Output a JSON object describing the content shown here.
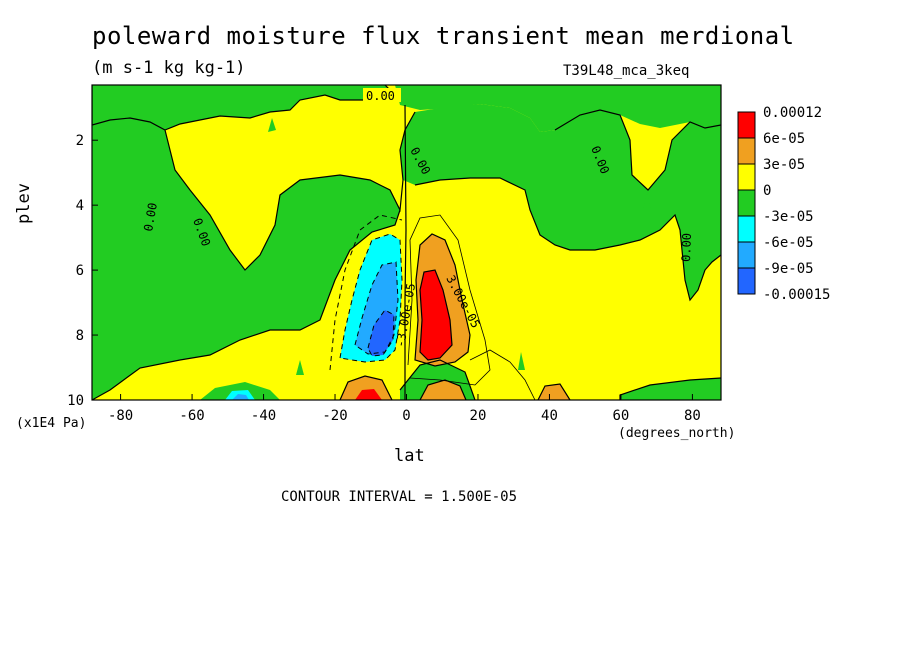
{
  "title": "poleward moisture flux transient mean merdional",
  "units": "(m s-1 kg kg-1)",
  "dataset": "T39L48_mca_3keq",
  "contour_interval": "CONTOUR INTERVAL = 1.500E-05",
  "colors": {
    "red": "#ff0000",
    "orange": "#f0a020",
    "yellow": "#ffff00",
    "green": "#22cc22",
    "cyan": "#00ffff",
    "sky": "#22aaff",
    "blue": "#2266ff"
  },
  "chart_data": {
    "type": "heatmap",
    "title": "poleward moisture flux transient mean merdional",
    "xlabel": "lat",
    "ylabel": "plev",
    "x_units": "(degrees_north)",
    "y_units": "(x1E4 Pa)",
    "xlim": [
      -88,
      88
    ],
    "ylim": [
      10,
      0.3
    ],
    "x_ticks": [
      "-80",
      "-60",
      "-40",
      "-20",
      "0",
      "20",
      "40",
      "60",
      "80"
    ],
    "y_ticks": [
      "2",
      "4",
      "6",
      "8",
      "10"
    ],
    "colorbar": {
      "labels": [
        "0.00012",
        "6e-05",
        "3e-05",
        "0",
        "-3e-05",
        "-6e-05",
        "-9e-05",
        "-0.00015"
      ],
      "bins": [
        {
          "range": [
            9e-05,
            0.00012
          ],
          "color": "red"
        },
        {
          "range": [
            6e-05,
            9e-05
          ],
          "color": "orange"
        },
        {
          "range": [
            3e-05,
            6e-05
          ],
          "color": "orange"
        },
        {
          "range": [
            0,
            3e-05
          ],
          "color": "yellow"
        },
        {
          "range": [
            -3e-05,
            0
          ],
          "color": "green"
        },
        {
          "range": [
            -6e-05,
            -3e-05
          ],
          "color": "cyan"
        },
        {
          "range": [
            -9e-05,
            -6e-05
          ],
          "color": "sky"
        },
        {
          "range": [
            -0.00015,
            -9e-05
          ],
          "color": "blue"
        }
      ]
    },
    "contour_labels": [
      "0.00",
      "0.00",
      "0.00",
      "0.00",
      "0.00",
      "0.00",
      "3.00e-05",
      "-3.00e-05"
    ],
    "features": [
      {
        "region": "equator south",
        "lat_range": [
          -17,
          -2
        ],
        "plev_range": [
          5,
          9.2
        ],
        "min": -0.00012
      },
      {
        "region": "equator north",
        "lat_range": [
          3,
          18
        ],
        "plev_range": [
          4.8,
          9
        ],
        "max": 0.00012
      },
      {
        "region": "southern high latitudes",
        "lat_range": [
          -88,
          -65
        ],
        "plev_range": [
          0.3,
          10
        ],
        "sign": "negative"
      },
      {
        "region": "northern high latitudes",
        "lat_range": [
          65,
          88
        ],
        "plev_range": [
          1,
          8
        ],
        "sign": "negative"
      }
    ]
  }
}
